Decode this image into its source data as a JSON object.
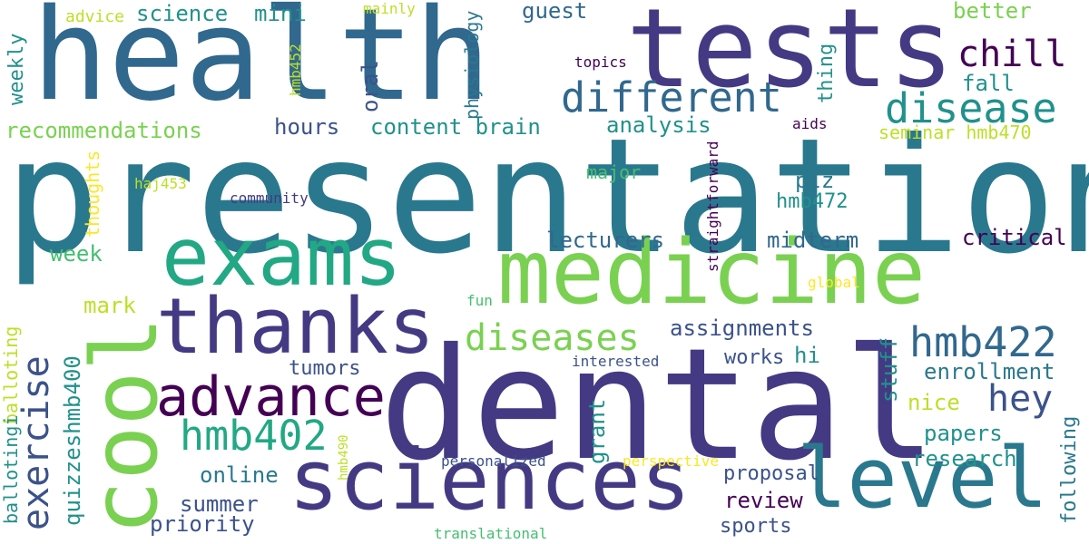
{
  "palette": {
    "dark_purple": "#440154",
    "indigo": "#443a83",
    "slate_blue": "#3b528b",
    "steel_blue": "#31688e",
    "teal_blue": "#2a788e",
    "teal": "#21918c",
    "sea_green": "#22a884",
    "mint": "#44bf70",
    "green": "#7ad151",
    "lime": "#bddf26",
    "yellow": "#fde725"
  },
  "words": [
    {
      "text": "presentation",
      "color": "#2a788e"
    },
    {
      "text": "dental",
      "color": "#443a83"
    },
    {
      "text": "health",
      "color": "#31688e"
    },
    {
      "text": "tests",
      "color": "#443a83"
    },
    {
      "text": "medicine",
      "color": "#7ad151"
    },
    {
      "text": "exams",
      "color": "#22a884"
    },
    {
      "text": "cool",
      "color": "#7ad151"
    },
    {
      "text": "sciences",
      "color": "#443a83"
    },
    {
      "text": "level",
      "color": "#2a788e"
    },
    {
      "text": "thanks",
      "color": "#443a83"
    },
    {
      "text": "advance",
      "color": "#440154"
    },
    {
      "text": "different",
      "color": "#31688e"
    },
    {
      "text": "disease",
      "color": "#21918c"
    },
    {
      "text": "hmb422",
      "color": "#31688e"
    },
    {
      "text": "hmb402",
      "color": "#22a884"
    },
    {
      "text": "exercise",
      "color": "#3b528b"
    },
    {
      "text": "diseases",
      "color": "#7ad151"
    },
    {
      "text": "chill",
      "color": "#440154"
    },
    {
      "text": "hey",
      "color": "#3b528b"
    },
    {
      "text": "recommendations",
      "color": "#7ad151"
    },
    {
      "text": "science",
      "color": "#21918c"
    },
    {
      "text": "mini",
      "color": "#21918c"
    },
    {
      "text": "guest",
      "color": "#31688e"
    },
    {
      "text": "better",
      "color": "#7ad151"
    },
    {
      "text": "fall",
      "color": "#21918c"
    },
    {
      "text": "content brain",
      "color": "#21918c"
    },
    {
      "text": "hours",
      "color": "#3b528b"
    },
    {
      "text": "analysis",
      "color": "#21918c"
    },
    {
      "text": "seminar hmb470",
      "color": "#bddf26"
    },
    {
      "text": "plz",
      "color": "#2a788e"
    },
    {
      "text": "major",
      "color": "#44bf70"
    },
    {
      "text": "hmb472",
      "color": "#21918c"
    },
    {
      "text": "lecturers",
      "color": "#31688e"
    },
    {
      "text": "midterm",
      "color": "#31688e"
    },
    {
      "text": "critical",
      "color": "#440154"
    },
    {
      "text": "week",
      "color": "#44bf70"
    },
    {
      "text": "mark",
      "color": "#bddf26"
    },
    {
      "text": "assignments",
      "color": "#3b528b"
    },
    {
      "text": "hi",
      "color": "#21918c"
    },
    {
      "text": "works",
      "color": "#3b528b"
    },
    {
      "text": "enrollment",
      "color": "#2a788e"
    },
    {
      "text": "tumors",
      "color": "#3b528b"
    },
    {
      "text": "nice",
      "color": "#bddf26"
    },
    {
      "text": "papers",
      "color": "#21918c"
    },
    {
      "text": "research",
      "color": "#21918c"
    },
    {
      "text": "online",
      "color": "#2a788e"
    },
    {
      "text": "summer",
      "color": "#3b528b"
    },
    {
      "text": "priority",
      "color": "#3b528b"
    },
    {
      "text": "review",
      "color": "#440154"
    },
    {
      "text": "proposal",
      "color": "#3b528b"
    },
    {
      "text": "sports",
      "color": "#3b528b"
    },
    {
      "text": "personalized",
      "color": "#3b528b"
    },
    {
      "text": "perspective",
      "color": "#fde725"
    },
    {
      "text": "translational",
      "color": "#44bf70"
    },
    {
      "text": "interested",
      "color": "#3b528b"
    },
    {
      "text": "community",
      "color": "#443a83"
    },
    {
      "text": "haj453",
      "color": "#bddf26"
    },
    {
      "text": "topics",
      "color": "#440154"
    },
    {
      "text": "aids",
      "color": "#440154"
    },
    {
      "text": "global",
      "color": "#fde725"
    },
    {
      "text": "fun",
      "color": "#44bf70"
    },
    {
      "text": "advice",
      "color": "#bddf26"
    },
    {
      "text": "mainly",
      "color": "#bddf26"
    },
    {
      "text": "weekly",
      "color": "#21918c"
    },
    {
      "text": "hmb452",
      "color": "#bddf26"
    },
    {
      "text": "oral",
      "color": "#3b528b"
    },
    {
      "text": "physiology",
      "color": "#2a788e"
    },
    {
      "text": "thing",
      "color": "#21918c"
    },
    {
      "text": "thoughts",
      "color": "#fde725"
    },
    {
      "text": "straightforward",
      "color": "#440154"
    },
    {
      "text": "balloting",
      "color": "#bddf26"
    },
    {
      "text": "ballotingi",
      "color": "#21918c"
    },
    {
      "text": "quizzeshmb400",
      "color": "#21918c"
    },
    {
      "text": "hmb490",
      "color": "#bddf26"
    },
    {
      "text": "grant",
      "color": "#21918c"
    },
    {
      "text": "stuff",
      "color": "#21918c"
    },
    {
      "text": "following",
      "color": "#2a788e"
    }
  ]
}
